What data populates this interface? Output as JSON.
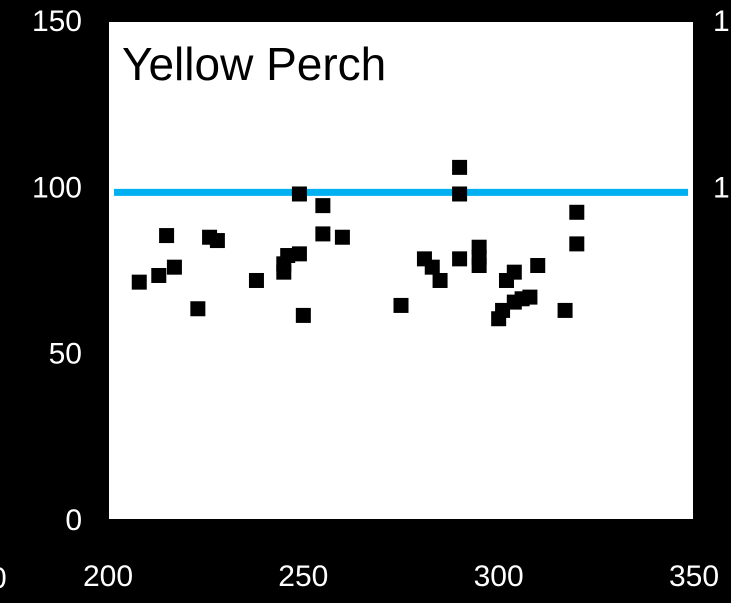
{
  "chart_data": {
    "type": "scatter",
    "title": "Yellow Perch",
    "xlabel": "",
    "ylabel": "",
    "xlim": [
      200,
      350
    ],
    "ylim": [
      0,
      150
    ],
    "xticks": [
      200,
      250,
      300,
      350
    ],
    "yticks": [
      0,
      50,
      100,
      150
    ],
    "xtick_labels": [
      "200",
      "250",
      "300",
      "350"
    ],
    "ytick_labels": [
      "0",
      "50",
      "100",
      "150"
    ],
    "right_tick_labels": [
      "1",
      "1"
    ],
    "left_edge_label": "0",
    "grid": false,
    "reference_line": {
      "y": 98.5,
      "color": "#00B0F0"
    },
    "series": [
      {
        "marker": "square",
        "color": "#000000",
        "points": [
          {
            "x": 208,
            "y": 71.5
          },
          {
            "x": 213,
            "y": 73.5
          },
          {
            "x": 215,
            "y": 85.5
          },
          {
            "x": 217,
            "y": 76
          },
          {
            "x": 223,
            "y": 63.5
          },
          {
            "x": 226,
            "y": 85
          },
          {
            "x": 228,
            "y": 84
          },
          {
            "x": 238,
            "y": 72
          },
          {
            "x": 245,
            "y": 74.5
          },
          {
            "x": 245,
            "y": 77
          },
          {
            "x": 246,
            "y": 79.5
          },
          {
            "x": 249,
            "y": 80
          },
          {
            "x": 249,
            "y": 98
          },
          {
            "x": 250,
            "y": 61.5
          },
          {
            "x": 255,
            "y": 94.5
          },
          {
            "x": 255,
            "y": 86
          },
          {
            "x": 260,
            "y": 85
          },
          {
            "x": 275,
            "y": 64.5
          },
          {
            "x": 281,
            "y": 78.5
          },
          {
            "x": 283,
            "y": 76
          },
          {
            "x": 285,
            "y": 72
          },
          {
            "x": 290,
            "y": 106
          },
          {
            "x": 290,
            "y": 98
          },
          {
            "x": 290,
            "y": 78.5
          },
          {
            "x": 295,
            "y": 82
          },
          {
            "x": 295,
            "y": 79
          },
          {
            "x": 295,
            "y": 76.5
          },
          {
            "x": 300,
            "y": 60.5
          },
          {
            "x": 301,
            "y": 63
          },
          {
            "x": 302,
            "y": 72
          },
          {
            "x": 304,
            "y": 74.5
          },
          {
            "x": 304,
            "y": 65.5
          },
          {
            "x": 306,
            "y": 66.5
          },
          {
            "x": 308,
            "y": 67
          },
          {
            "x": 310,
            "y": 76.5
          },
          {
            "x": 317,
            "y": 63
          },
          {
            "x": 320,
            "y": 92.5
          },
          {
            "x": 320,
            "y": 83
          }
        ]
      }
    ],
    "colors": {
      "background": "#000000",
      "plot_area": "#FFFFFF",
      "axis": "#000000",
      "tick_label": "#FFFFFF",
      "title": "#000000"
    }
  }
}
